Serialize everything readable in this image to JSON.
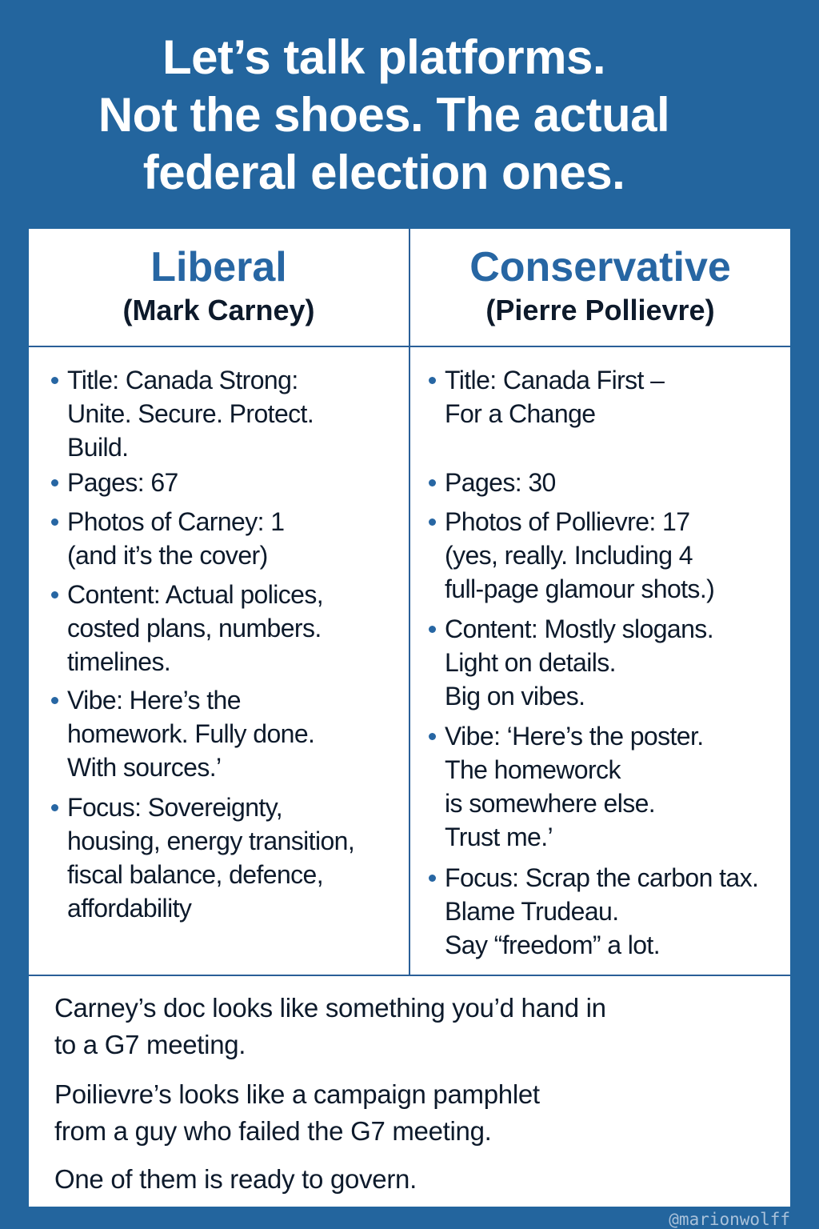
{
  "headline": {
    "lines": [
      "Let’s talk platforms.",
      "Not the shoes. The actual",
      "federal election ones."
    ]
  },
  "columns": [
    {
      "party": "Liberal",
      "leader": "(Mark Carney)",
      "items": [
        "Title: Canada Strong:\nUnite. Secure. Protect.\nBuild.",
        "Pages:  67",
        "Photos of Carney: 1\n(and it’s the cover)",
        "Content: Actual polices,\ncosted plans, numbers.\ntimelines.",
        "Vibe: Here’s the\nhomework. Fully done.\nWith sources.’",
        "Focus: Sovereignty,\nhousing, energy transition,\nfiscal balance, defence,\naffordability"
      ]
    },
    {
      "party": "Conservative",
      "leader": "(Pierre Pollievre)",
      "items": [
        "Title: Canada First –\nFor a Change",
        "Pages: 30",
        "Photos of Pollievre: 17\n(yes, really. Including 4\nfull-page glamour shots.)",
        "Content: Mostly slogans.\nLight on details.\nBig on vibes.",
        "Vibe: ‘Here’s the poster.\nThe homeworck\nis somewhere else.\nTrust me.’",
        "Focus: Scrap the carbon tax.\nBlame Trudeau.\nSay “freedom” a lot."
      ]
    }
  ],
  "footer": {
    "lines": [
      "Carney’s doc looks like something you’d hand in\nto a G7 meeting.",
      "Poilievre’s looks like a campaign pamphlet\nfrom a guy who failed the G7 meeting.",
      "One of them is ready to govern."
    ]
  },
  "watermark": "@marionwolff",
  "colors": {
    "background": "#23659e",
    "accent": "#2766a3",
    "text": "#0d1a2b"
  }
}
